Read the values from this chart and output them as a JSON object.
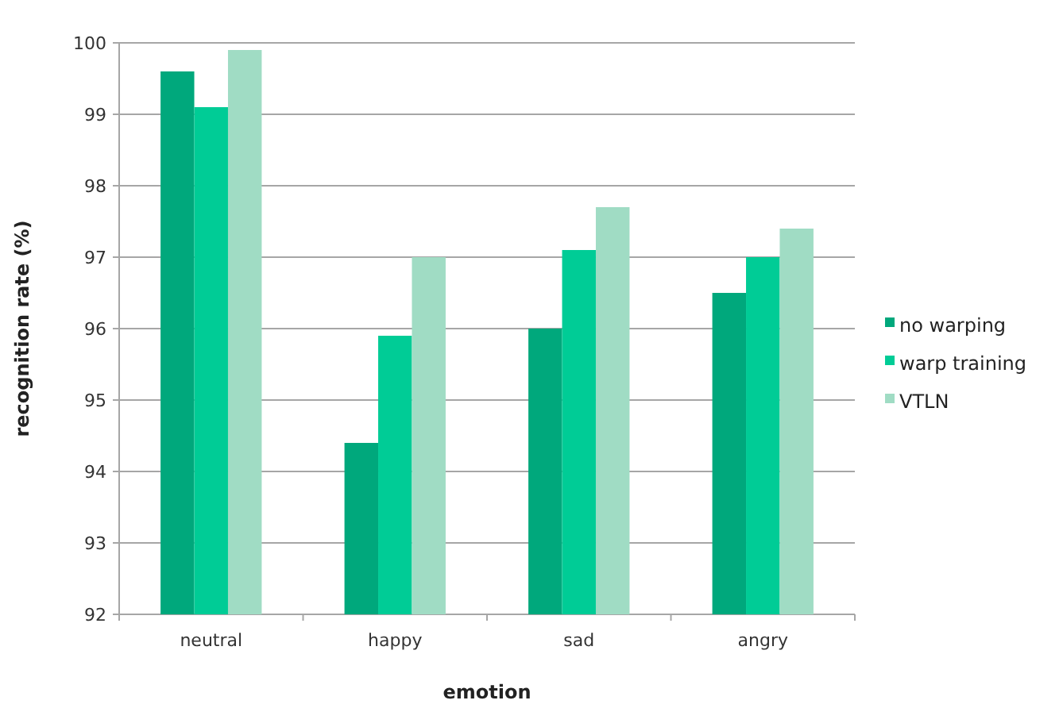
{
  "chart_data": {
    "type": "bar",
    "xlabel": "emotion",
    "ylabel": "recognition rate (%)",
    "categories": [
      "neutral",
      "happy",
      "sad",
      "angry"
    ],
    "series": [
      {
        "name": "no warping",
        "color": "#00a87c",
        "values": [
          99.6,
          94.4,
          96.0,
          96.5
        ]
      },
      {
        "name": "warp training",
        "color": "#00cc96",
        "values": [
          99.1,
          95.9,
          97.1,
          97.0
        ]
      },
      {
        "name": "VTLN",
        "color": "#a0dcc4",
        "values": [
          99.9,
          97.0,
          97.7,
          97.4
        ]
      }
    ],
    "ylim": [
      92,
      100
    ],
    "yticks": [
      92,
      93,
      94,
      95,
      96,
      97,
      98,
      99,
      100
    ],
    "grid": "y",
    "legend": "right"
  }
}
